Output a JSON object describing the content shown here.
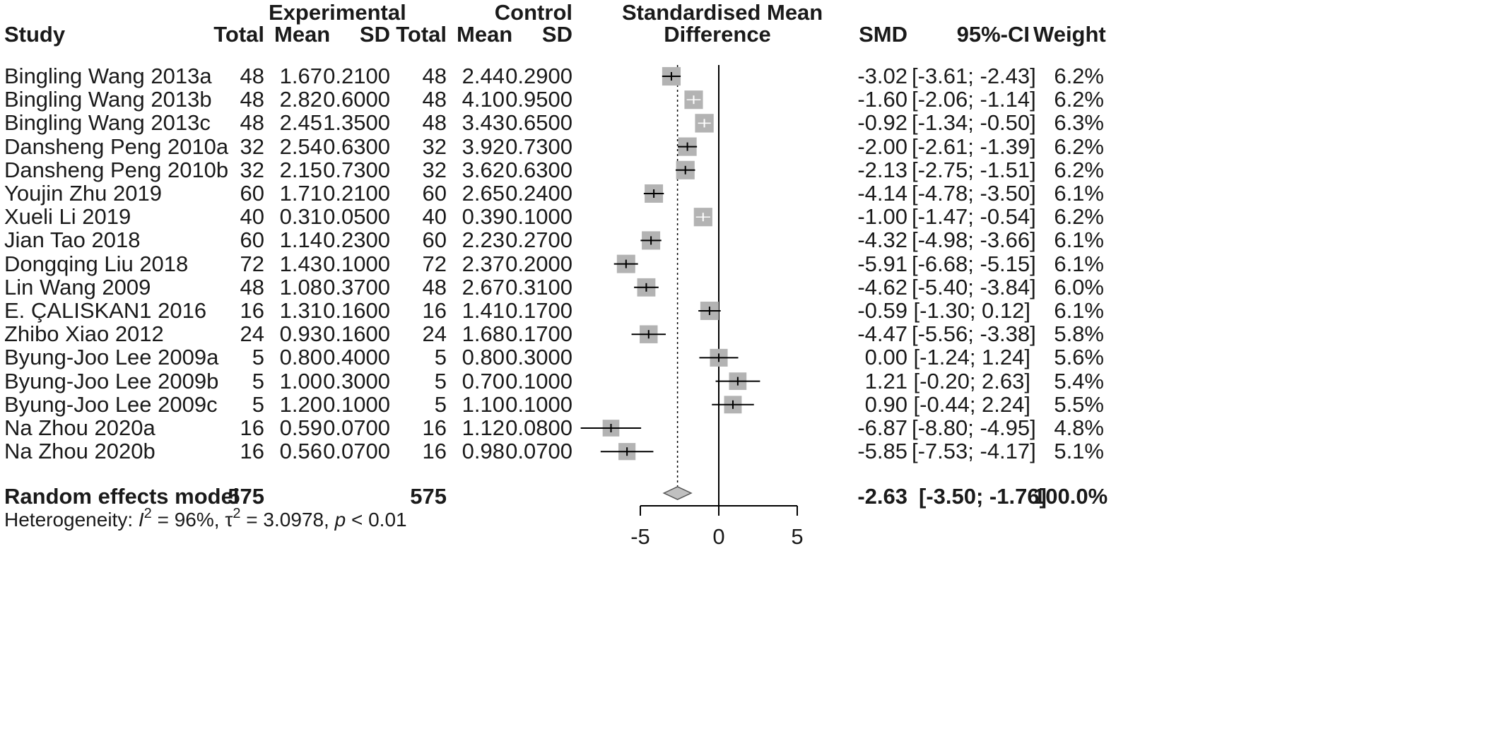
{
  "headers": {
    "study": "Study",
    "experimental": "Experimental",
    "control": "Control",
    "exp_total": "Total",
    "exp_mean": "Mean",
    "exp_sd": "SD",
    "ctl_total": "Total",
    "ctl_mean": "Mean",
    "ctl_sd": "SD",
    "effect_line1": "Standardised Mean",
    "effect_line2": "Difference",
    "smd": "SMD",
    "ci": "95%-CI",
    "weight": "Weight"
  },
  "rows": [
    {
      "study": "Bingling Wang 2013a",
      "exp_total": "48",
      "exp_mean": "1.67",
      "exp_sd": "0.2100",
      "ctl_total": "48",
      "ctl_mean": "2.44",
      "ctl_sd": "0.2900",
      "smd": "-3.02",
      "ci": "[-3.61; -2.43]",
      "weight": "6.2%"
    },
    {
      "study": "Bingling Wang 2013b",
      "exp_total": "48",
      "exp_mean": "2.82",
      "exp_sd": "0.6000",
      "ctl_total": "48",
      "ctl_mean": "4.10",
      "ctl_sd": "0.9500",
      "smd": "-1.60",
      "ci": "[-2.06; -1.14]",
      "weight": "6.2%"
    },
    {
      "study": "Bingling Wang 2013c",
      "exp_total": "48",
      "exp_mean": "2.45",
      "exp_sd": "1.3500",
      "ctl_total": "48",
      "ctl_mean": "3.43",
      "ctl_sd": "0.6500",
      "smd": "-0.92",
      "ci": "[-1.34; -0.50]",
      "weight": "6.3%"
    },
    {
      "study": "Dansheng Peng 2010a",
      "exp_total": "32",
      "exp_mean": "2.54",
      "exp_sd": "0.6300",
      "ctl_total": "32",
      "ctl_mean": "3.92",
      "ctl_sd": "0.7300",
      "smd": "-2.00",
      "ci": "[-2.61; -1.39]",
      "weight": "6.2%"
    },
    {
      "study": "Dansheng Peng 2010b",
      "exp_total": "32",
      "exp_mean": "2.15",
      "exp_sd": "0.7300",
      "ctl_total": "32",
      "ctl_mean": "3.62",
      "ctl_sd": "0.6300",
      "smd": "-2.13",
      "ci": "[-2.75; -1.51]",
      "weight": "6.2%"
    },
    {
      "study": "Youjin Zhu 2019",
      "exp_total": "60",
      "exp_mean": "1.71",
      "exp_sd": "0.2100",
      "ctl_total": "60",
      "ctl_mean": "2.65",
      "ctl_sd": "0.2400",
      "smd": "-4.14",
      "ci": "[-4.78; -3.50]",
      "weight": "6.1%"
    },
    {
      "study": "Xueli Li 2019",
      "exp_total": "40",
      "exp_mean": "0.31",
      "exp_sd": "0.0500",
      "ctl_total": "40",
      "ctl_mean": "0.39",
      "ctl_sd": "0.1000",
      "smd": "-1.00",
      "ci": "[-1.47; -0.54]",
      "weight": "6.2%"
    },
    {
      "study": "Jian Tao 2018",
      "exp_total": "60",
      "exp_mean": "1.14",
      "exp_sd": "0.2300",
      "ctl_total": "60",
      "ctl_mean": "2.23",
      "ctl_sd": "0.2700",
      "smd": "-4.32",
      "ci": "[-4.98; -3.66]",
      "weight": "6.1%"
    },
    {
      "study": "Dongqing Liu 2018",
      "exp_total": "72",
      "exp_mean": "1.43",
      "exp_sd": "0.1000",
      "ctl_total": "72",
      "ctl_mean": "2.37",
      "ctl_sd": "0.2000",
      "smd": "-5.91",
      "ci": "[-6.68; -5.15]",
      "weight": "6.1%"
    },
    {
      "study": "Lin Wang 2009",
      "exp_total": "48",
      "exp_mean": "1.08",
      "exp_sd": "0.3700",
      "ctl_total": "48",
      "ctl_mean": "2.67",
      "ctl_sd": "0.3100",
      "smd": "-4.62",
      "ci": "[-5.40; -3.84]",
      "weight": "6.0%"
    },
    {
      "study": "E. ÇALISKAN1 2016",
      "exp_total": "16",
      "exp_mean": "1.31",
      "exp_sd": "0.1600",
      "ctl_total": "16",
      "ctl_mean": "1.41",
      "ctl_sd": "0.1700",
      "smd": "-0.59",
      "ci": "[-1.30; 0.12]",
      "weight": "6.1%"
    },
    {
      "study": "Zhibo Xiao 2012",
      "exp_total": "24",
      "exp_mean": "0.93",
      "exp_sd": "0.1600",
      "ctl_total": "24",
      "ctl_mean": "1.68",
      "ctl_sd": "0.1700",
      "smd": "-4.47",
      "ci": "[-5.56; -3.38]",
      "weight": "5.8%"
    },
    {
      "study": "Byung-Joo Lee 2009a",
      "exp_total": "5",
      "exp_mean": "0.80",
      "exp_sd": "0.4000",
      "ctl_total": "5",
      "ctl_mean": "0.80",
      "ctl_sd": "0.3000",
      "smd": "0.00",
      "ci": "[-1.24; 1.24]",
      "weight": "5.6%"
    },
    {
      "study": "Byung-Joo Lee 2009b",
      "exp_total": "5",
      "exp_mean": "1.00",
      "exp_sd": "0.3000",
      "ctl_total": "5",
      "ctl_mean": "0.70",
      "ctl_sd": "0.1000",
      "smd": "1.21",
      "ci": "[-0.20; 2.63]",
      "weight": "5.4%"
    },
    {
      "study": "Byung-Joo Lee 2009c",
      "exp_total": "5",
      "exp_mean": "1.20",
      "exp_sd": "0.1000",
      "ctl_total": "5",
      "ctl_mean": "1.10",
      "ctl_sd": "0.1000",
      "smd": "0.90",
      "ci": "[-0.44; 2.24]",
      "weight": "5.5%"
    },
    {
      "study": "Na Zhou 2020a",
      "exp_total": "16",
      "exp_mean": "0.59",
      "exp_sd": "0.0700",
      "ctl_total": "16",
      "ctl_mean": "1.12",
      "ctl_sd": "0.0800",
      "smd": "-6.87",
      "ci": "[-8.80; -4.95]",
      "weight": "4.8%"
    },
    {
      "study": "Na Zhou 2020b",
      "exp_total": "16",
      "exp_mean": "0.56",
      "exp_sd": "0.0700",
      "ctl_total": "16",
      "ctl_mean": "0.98",
      "ctl_sd": "0.0700",
      "smd": "-5.85",
      "ci": "[-7.53; -4.17]",
      "weight": "5.1%"
    }
  ],
  "summary": {
    "label": "Random effects model",
    "exp_total": "575",
    "ctl_total": "575",
    "smd": "-2.63",
    "ci": "[-3.50; -1.76]",
    "weight": "100.0%"
  },
  "heterogeneity": {
    "prefix": "Heterogeneity: ",
    "i_symbol": "I",
    "i_exp": "2",
    "i_value": " = 96%, ",
    "tau_symbol": "τ",
    "tau_exp": "2",
    "tau_value": " = 3.0978, ",
    "p_symbol": "p",
    "p_value": " < 0.01"
  },
  "colors": {
    "box": "#b3b3b3",
    "line": "#000000",
    "diamond": "#c0c0c0",
    "text": "#1a1a1a"
  },
  "chart_data": {
    "type": "forest",
    "xlim": [
      -5,
      5
    ],
    "ticks": [
      -5,
      0,
      5
    ],
    "tick_labels": [
      "-5",
      "0",
      "5"
    ],
    "null_line": 0,
    "studies": [
      {
        "smd": -3.02,
        "lower": -3.61,
        "upper": -2.43,
        "weight": 6.2
      },
      {
        "smd": -1.6,
        "lower": -2.06,
        "upper": -1.14,
        "weight": 6.2
      },
      {
        "smd": -0.92,
        "lower": -1.34,
        "upper": -0.5,
        "weight": 6.3
      },
      {
        "smd": -2.0,
        "lower": -2.61,
        "upper": -1.39,
        "weight": 6.2
      },
      {
        "smd": -2.13,
        "lower": -2.75,
        "upper": -1.51,
        "weight": 6.2
      },
      {
        "smd": -4.14,
        "lower": -4.78,
        "upper": -3.5,
        "weight": 6.1
      },
      {
        "smd": -1.0,
        "lower": -1.47,
        "upper": -0.54,
        "weight": 6.2
      },
      {
        "smd": -4.32,
        "lower": -4.98,
        "upper": -3.66,
        "weight": 6.1
      },
      {
        "smd": -5.91,
        "lower": -6.68,
        "upper": -5.15,
        "weight": 6.1
      },
      {
        "smd": -4.62,
        "lower": -5.4,
        "upper": -3.84,
        "weight": 6.0
      },
      {
        "smd": -0.59,
        "lower": -1.3,
        "upper": 0.12,
        "weight": 6.1
      },
      {
        "smd": -4.47,
        "lower": -5.56,
        "upper": -3.38,
        "weight": 5.8
      },
      {
        "smd": 0.0,
        "lower": -1.24,
        "upper": 1.24,
        "weight": 5.6
      },
      {
        "smd": 1.21,
        "lower": -0.2,
        "upper": 2.63,
        "weight": 5.4
      },
      {
        "smd": 0.9,
        "lower": -0.44,
        "upper": 2.24,
        "weight": 5.5
      },
      {
        "smd": -6.87,
        "lower": -8.8,
        "upper": -4.95,
        "weight": 4.8
      },
      {
        "smd": -5.85,
        "lower": -7.53,
        "upper": -4.17,
        "weight": 5.1
      }
    ],
    "pooled": {
      "smd": -2.63,
      "lower": -3.5,
      "upper": -1.76,
      "weight": 100.0
    }
  }
}
